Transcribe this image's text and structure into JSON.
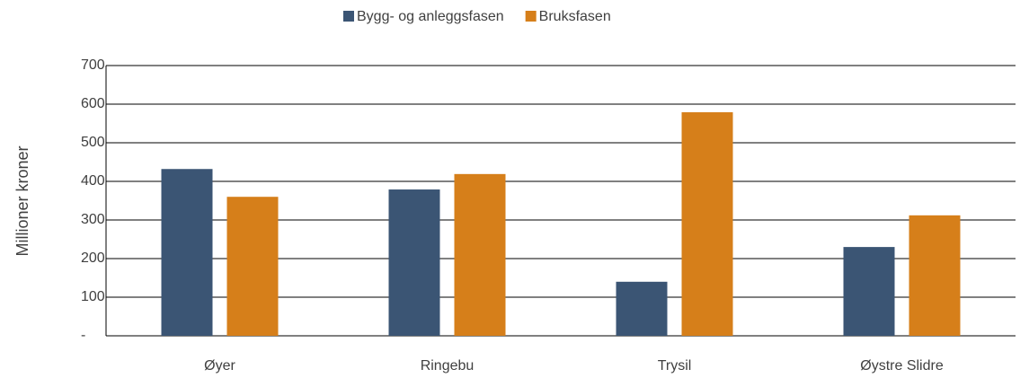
{
  "chart_data": {
    "type": "bar",
    "y_label": "Millioner kroner",
    "categories": [
      "Øyer",
      "Ringebu",
      "Trysil",
      "Øystre Slidre"
    ],
    "series": [
      {
        "name": "Bygg- og anleggsfasen",
        "color": "#3b5574",
        "values": [
          432,
          379,
          140,
          230
        ]
      },
      {
        "name": "Bruksfasen",
        "color": "#d67f1a",
        "values": [
          360,
          419,
          579,
          312
        ]
      }
    ],
    "ylim": [
      0,
      700
    ],
    "yticks": [
      {
        "value": 0,
        "label": "-"
      },
      100,
      200,
      300,
      400,
      500,
      600,
      700
    ],
    "grid": true,
    "legend": "top"
  }
}
